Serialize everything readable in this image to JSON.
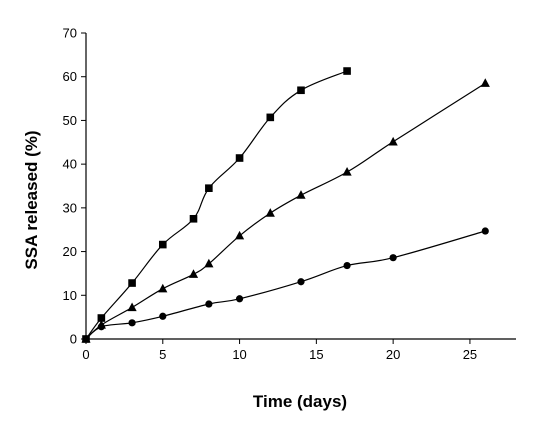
{
  "chart_data": {
    "type": "line",
    "title": "",
    "xlabel": "Time (days)",
    "ylabel": "SSA released (%)",
    "xlim": [
      0,
      28
    ],
    "ylim": [
      0,
      70
    ],
    "x_ticks": [
      0,
      5,
      10,
      15,
      20,
      25
    ],
    "y_ticks": [
      0,
      10,
      20,
      30,
      40,
      50,
      60,
      70
    ],
    "grid": false,
    "legend": "none",
    "series": [
      {
        "marker": "square",
        "x": [
          0,
          1,
          3,
          5,
          7,
          8,
          10,
          12,
          14,
          17
        ],
        "y": [
          0,
          4.8,
          12.8,
          21.6,
          27.5,
          34.5,
          41.4,
          50.7,
          56.9,
          61.3
        ]
      },
      {
        "marker": "triangle",
        "x": [
          0,
          1,
          3,
          5,
          7,
          8,
          10,
          12,
          14,
          17,
          20,
          26
        ],
        "y": [
          0,
          3.2,
          7.2,
          11.5,
          14.8,
          17.2,
          23.6,
          28.8,
          32.9,
          38.2,
          45.1,
          58.5
        ]
      },
      {
        "marker": "circle",
        "x": [
          0,
          1,
          3,
          5,
          8,
          10,
          14,
          17,
          20,
          26
        ],
        "y": [
          0,
          2.8,
          3.7,
          5.2,
          8.0,
          9.2,
          13.1,
          16.8,
          18.6,
          24.7
        ]
      }
    ]
  }
}
